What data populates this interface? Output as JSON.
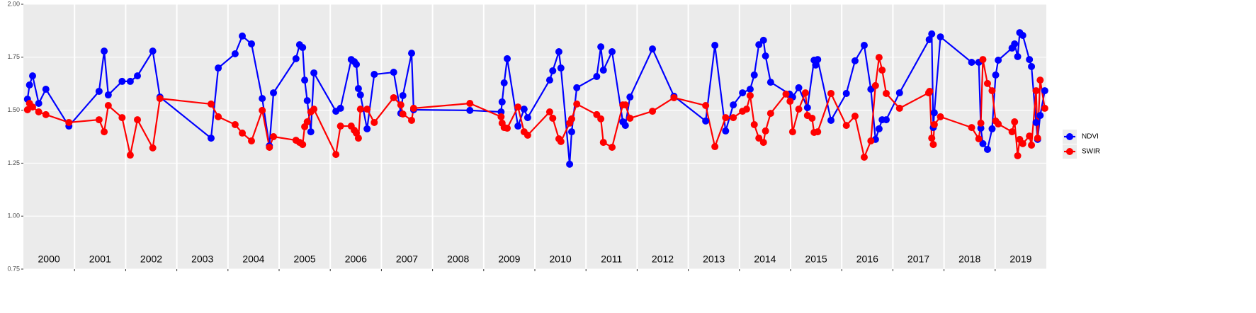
{
  "chart_data": {
    "type": "line",
    "xlim": [
      2000,
      2020
    ],
    "xticks": [
      {
        "value": 2000.5,
        "label": "2000"
      },
      {
        "value": 2001.5,
        "label": "2001"
      },
      {
        "value": 2002.5,
        "label": "2002"
      },
      {
        "value": 2003.5,
        "label": "2003"
      },
      {
        "value": 2004.5,
        "label": "2004"
      },
      {
        "value": 2005.5,
        "label": "2005"
      },
      {
        "value": 2006.5,
        "label": "2006"
      },
      {
        "value": 2007.5,
        "label": "2007"
      },
      {
        "value": 2008.5,
        "label": "2008"
      },
      {
        "value": 2009.5,
        "label": "2009"
      },
      {
        "value": 2010.5,
        "label": "2010"
      },
      {
        "value": 2011.5,
        "label": "2011"
      },
      {
        "value": 2012.5,
        "label": "2012"
      },
      {
        "value": 2013.5,
        "label": "2013"
      },
      {
        "value": 2014.5,
        "label": "2014"
      },
      {
        "value": 2015.5,
        "label": "2015"
      },
      {
        "value": 2016.5,
        "label": "2016"
      },
      {
        "value": 2017.5,
        "label": "2017"
      },
      {
        "value": 2018.5,
        "label": "2018"
      },
      {
        "value": 2019.5,
        "label": "2019"
      }
    ],
    "xgrid": [
      2001,
      2002,
      2003,
      2004,
      2005,
      2006,
      2007,
      2008,
      2009,
      2010,
      2011,
      2012,
      2013,
      2014,
      2015,
      2016,
      2017,
      2018,
      2019
    ],
    "ylim": [
      0.75,
      2.0
    ],
    "yticks": [
      0.75,
      {
        "value": 1,
        "label": "1.00"
      },
      1.25,
      {
        "value": 1.5,
        "label": "1.50"
      },
      1.75,
      {
        "value": 2,
        "label": "2.00"
      }
    ],
    "grid": true,
    "legend": "right",
    "series": [
      {
        "name": "NDVI",
        "color": "#0000ff",
        "x": [
          2000.08,
          2000.12,
          2000.18,
          2000.3,
          2000.44,
          2000.89,
          2001.48,
          2001.58,
          2001.66,
          2001.93,
          2002.09,
          2002.23,
          2002.53,
          2002.67,
          2003.67,
          2003.81,
          2004.14,
          2004.28,
          2004.46,
          2004.67,
          2004.81,
          2004.89,
          2005.33,
          2005.4,
          2005.46,
          2005.5,
          2005.55,
          2005.62,
          2005.68,
          2006.11,
          2006.2,
          2006.41,
          2006.47,
          2006.51,
          2006.55,
          2006.59,
          2006.72,
          2006.86,
          2007.24,
          2007.38,
          2007.42,
          2007.59,
          2007.63,
          2008.73,
          2009.34,
          2009.36,
          2009.4,
          2009.46,
          2009.67,
          2009.79,
          2009.86,
          2010.29,
          2010.35,
          2010.47,
          2010.51,
          2010.68,
          2010.72,
          2010.82,
          2011.21,
          2011.29,
          2011.34,
          2011.51,
          2011.72,
          2011.77,
          2011.86,
          2012.3,
          2012.72,
          2013.34,
          2013.52,
          2013.73,
          2013.88,
          2014.06,
          2014.21,
          2014.29,
          2014.38,
          2014.47,
          2014.51,
          2014.61,
          2014.98,
          2015.04,
          2015.16,
          2015.33,
          2015.46,
          2015.49,
          2015.53,
          2015.79,
          2016.09,
          2016.26,
          2016.44,
          2016.57,
          2016.66,
          2016.73,
          2016.79,
          2016.87,
          2017.13,
          2017.71,
          2017.76,
          2017.79,
          2017.81,
          2017.93,
          2018.54,
          2018.68,
          2018.72,
          2018.76,
          2018.85,
          2018.94,
          2019.01,
          2019.06,
          2019.33,
          2019.38,
          2019.44,
          2019.48,
          2019.54,
          2019.67,
          2019.71,
          2019.8,
          2019.83,
          2019.88,
          2019.97
        ],
        "values": [
          1.552,
          1.619,
          1.662,
          1.532,
          1.599,
          1.425,
          1.589,
          1.779,
          1.572,
          1.636,
          1.636,
          1.662,
          1.779,
          1.562,
          1.368,
          1.699,
          1.766,
          1.85,
          1.813,
          1.555,
          1.332,
          1.582,
          1.743,
          1.809,
          1.796,
          1.642,
          1.545,
          1.398,
          1.676,
          1.495,
          1.509,
          1.739,
          1.729,
          1.716,
          1.602,
          1.572,
          1.412,
          1.669,
          1.679,
          1.485,
          1.569,
          1.769,
          1.502,
          1.499,
          1.492,
          1.539,
          1.629,
          1.743,
          1.425,
          1.505,
          1.465,
          1.642,
          1.686,
          1.776,
          1.699,
          1.245,
          1.398,
          1.606,
          1.659,
          1.799,
          1.689,
          1.776,
          1.445,
          1.428,
          1.562,
          1.789,
          1.566,
          1.449,
          1.806,
          1.402,
          1.525,
          1.582,
          1.599,
          1.666,
          1.809,
          1.83,
          1.756,
          1.632,
          1.576,
          1.562,
          1.606,
          1.512,
          1.736,
          1.713,
          1.739,
          1.452,
          1.579,
          1.733,
          1.806,
          1.599,
          1.362,
          1.412,
          1.455,
          1.455,
          1.582,
          1.833,
          1.86,
          1.418,
          1.488,
          1.846,
          1.726,
          1.726,
          1.415,
          1.342,
          1.315,
          1.412,
          1.666,
          1.736,
          1.793,
          1.813,
          1.753,
          1.866,
          1.853,
          1.739,
          1.706,
          1.442,
          1.362,
          1.475,
          1.592
        ]
      },
      {
        "name": "SWIR",
        "color": "#ff0000",
        "x": [
          2000.08,
          2000.12,
          2000.18,
          2000.3,
          2000.44,
          2000.89,
          2001.48,
          2001.58,
          2001.66,
          2001.93,
          2002.09,
          2002.23,
          2002.53,
          2002.67,
          2003.67,
          2003.81,
          2004.14,
          2004.28,
          2004.46,
          2004.67,
          2004.81,
          2004.89,
          2005.33,
          2005.4,
          2005.46,
          2005.5,
          2005.55,
          2005.62,
          2005.68,
          2006.11,
          2006.2,
          2006.41,
          2006.47,
          2006.51,
          2006.55,
          2006.59,
          2006.72,
          2006.86,
          2007.24,
          2007.38,
          2007.42,
          2007.59,
          2007.63,
          2008.73,
          2009.34,
          2009.36,
          2009.4,
          2009.46,
          2009.67,
          2009.79,
          2009.86,
          2010.29,
          2010.35,
          2010.47,
          2010.51,
          2010.68,
          2010.72,
          2010.82,
          2011.21,
          2011.29,
          2011.34,
          2011.51,
          2011.72,
          2011.77,
          2011.86,
          2012.3,
          2012.72,
          2013.34,
          2013.52,
          2013.73,
          2013.88,
          2014.06,
          2014.14,
          2014.21,
          2014.29,
          2014.38,
          2014.47,
          2014.51,
          2014.61,
          2014.91,
          2014.99,
          2015.04,
          2015.16,
          2015.29,
          2015.33,
          2015.42,
          2015.46,
          2015.53,
          2015.79,
          2016.09,
          2016.26,
          2016.44,
          2016.57,
          2016.66,
          2016.73,
          2016.79,
          2016.87,
          2017.13,
          2017.7,
          2017.72,
          2017.76,
          2017.79,
          2017.81,
          2017.93,
          2018.54,
          2018.68,
          2018.72,
          2018.76,
          2018.85,
          2018.94,
          2019.01,
          2019.06,
          2019.33,
          2019.38,
          2019.44,
          2019.48,
          2019.54,
          2019.67,
          2019.71,
          2019.8,
          2019.83,
          2019.88,
          2019.97
        ],
        "values": [
          1.502,
          1.532,
          1.515,
          1.492,
          1.479,
          1.442,
          1.455,
          1.398,
          1.522,
          1.465,
          1.288,
          1.455,
          1.322,
          1.555,
          1.529,
          1.469,
          1.432,
          1.392,
          1.355,
          1.499,
          1.325,
          1.375,
          1.358,
          1.348,
          1.338,
          1.422,
          1.445,
          1.492,
          1.505,
          1.291,
          1.425,
          1.425,
          1.405,
          1.392,
          1.368,
          1.505,
          1.505,
          1.442,
          1.559,
          1.525,
          1.482,
          1.452,
          1.509,
          1.532,
          1.469,
          1.439,
          1.418,
          1.415,
          1.515,
          1.398,
          1.382,
          1.492,
          1.462,
          1.365,
          1.352,
          1.439,
          1.459,
          1.529,
          1.479,
          1.459,
          1.348,
          1.325,
          1.525,
          1.525,
          1.462,
          1.495,
          1.559,
          1.522,
          1.328,
          1.465,
          1.465,
          1.495,
          1.505,
          1.569,
          1.432,
          1.368,
          1.348,
          1.402,
          1.485,
          1.576,
          1.542,
          1.398,
          1.505,
          1.582,
          1.475,
          1.462,
          1.395,
          1.398,
          1.579,
          1.428,
          1.472,
          1.278,
          1.355,
          1.616,
          1.749,
          1.689,
          1.579,
          1.509,
          1.582,
          1.589,
          1.368,
          1.338,
          1.432,
          1.469,
          1.418,
          1.365,
          1.439,
          1.739,
          1.626,
          1.592,
          1.449,
          1.435,
          1.398,
          1.445,
          1.285,
          1.362,
          1.342,
          1.378,
          1.335,
          1.592,
          1.368,
          1.642,
          1.509
        ]
      }
    ]
  }
}
